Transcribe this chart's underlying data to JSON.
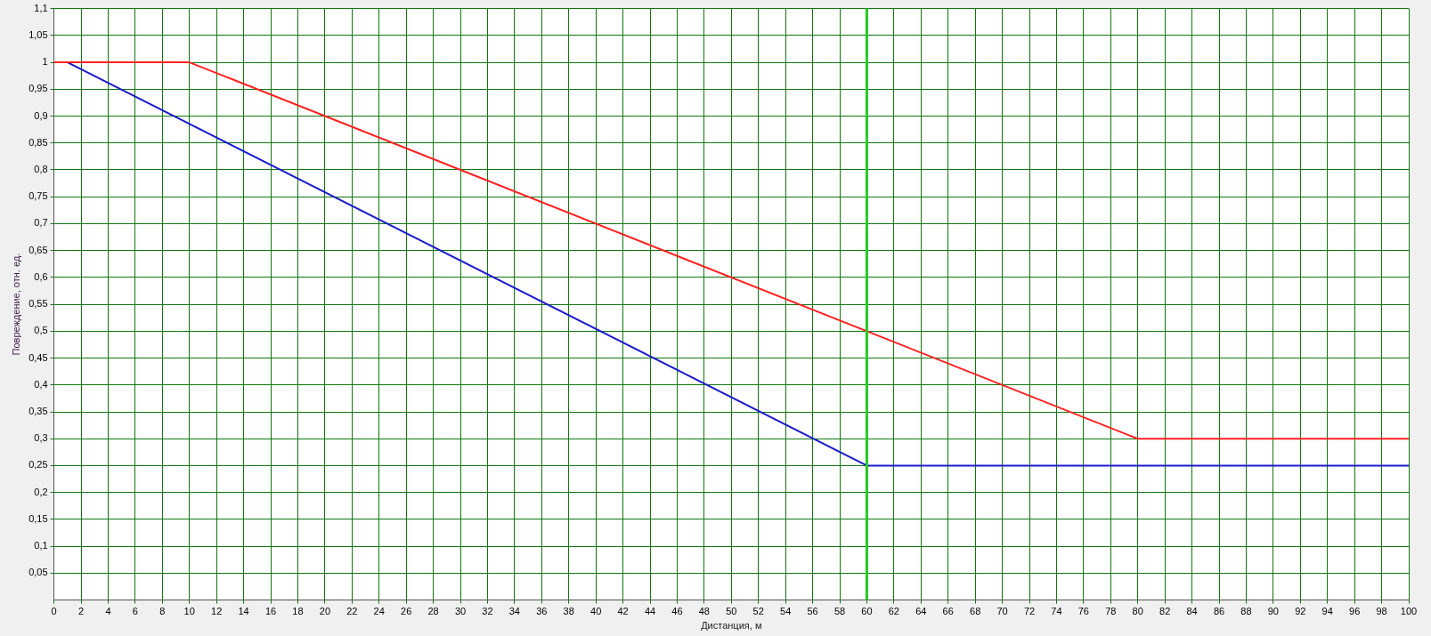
{
  "chart_data": {
    "type": "line",
    "xlabel": "Дистанция, м",
    "ylabel": "Повреждение, отн. ед.",
    "xlim": [
      0,
      100
    ],
    "xticks": [
      0,
      2,
      4,
      6,
      8,
      10,
      12,
      14,
      16,
      18,
      20,
      22,
      24,
      26,
      28,
      30,
      32,
      34,
      36,
      38,
      40,
      42,
      44,
      46,
      48,
      50,
      52,
      54,
      56,
      58,
      60,
      62,
      64,
      66,
      68,
      70,
      72,
      74,
      76,
      78,
      80,
      82,
      84,
      86,
      88,
      90,
      92,
      94,
      96,
      98,
      100
    ],
    "ylim": [
      0,
      1.1
    ],
    "yticks": [
      {
        "value": 0,
        "label": null
      },
      {
        "value": 0.05,
        "label": "0,05"
      },
      {
        "value": 0.1,
        "label": "0,1"
      },
      {
        "value": 0.15,
        "label": "0,15"
      },
      {
        "value": 0.2,
        "label": "0,2"
      },
      {
        "value": 0.25,
        "label": "0,25"
      },
      {
        "value": 0.3,
        "label": "0,3"
      },
      {
        "value": 0.35,
        "label": "0,35"
      },
      {
        "value": 0.4,
        "label": "0,4"
      },
      {
        "value": 0.45,
        "label": "0,45"
      },
      {
        "value": 0.5,
        "label": "0,5"
      },
      {
        "value": 0.55,
        "label": "0,55"
      },
      {
        "value": 0.6,
        "label": "0,6"
      },
      {
        "value": 0.65,
        "label": "0,65"
      },
      {
        "value": 0.7,
        "label": "0,7"
      },
      {
        "value": 0.75,
        "label": "0,75"
      },
      {
        "value": 0.8,
        "label": "0,8"
      },
      {
        "value": 0.85,
        "label": "0,85"
      },
      {
        "value": 0.9,
        "label": "0,9"
      },
      {
        "value": 0.95,
        "label": "0,95"
      },
      {
        "value": 1,
        "label": "1"
      },
      {
        "value": 1.05,
        "label": "1,05"
      },
      {
        "value": 1.1,
        "label": "1,1"
      }
    ],
    "grid": true,
    "legend": false,
    "marker": "none",
    "line_style": "solid",
    "series": [
      {
        "color": "#ff2020",
        "x": [
          0,
          10,
          80,
          100
        ],
        "values": [
          1,
          1,
          0.3,
          0.3
        ]
      },
      {
        "color": "#1a1acc",
        "x": [
          1,
          60,
          100
        ],
        "values": [
          1,
          0.25,
          0.25
        ]
      }
    ],
    "ref_lines": [
      {
        "axis": "x",
        "value": 60,
        "color": "#22cc22"
      }
    ]
  }
}
